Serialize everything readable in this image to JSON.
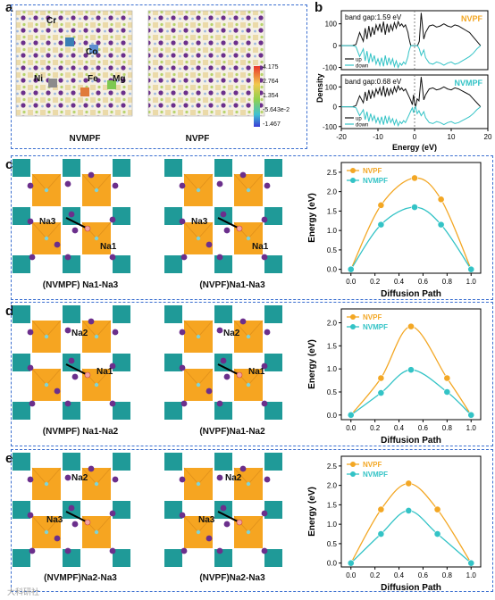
{
  "panel_letters": [
    "a",
    "b",
    "c",
    "d",
    "e"
  ],
  "panel_a": {
    "labels": [
      "NVMPF",
      "NVPF"
    ],
    "atom_labels": [
      "Cr",
      "Co",
      "Ni",
      "Fe",
      "Mg"
    ],
    "colorbar_ticks": [
      "4.175",
      "2.764",
      "1.354",
      "-5.643e-2",
      "-1.467"
    ]
  },
  "panel_c": {
    "labels": [
      "(NVMPF) Na1-Na3",
      "(NVPF)Na1-Na3"
    ],
    "site_labels": [
      "Na3",
      "Na1"
    ]
  },
  "panel_d": {
    "labels": [
      "(NVMPF) Na1-Na2",
      "(NVPF)Na1-Na2"
    ],
    "site_labels": [
      "Na2",
      "Na1"
    ]
  },
  "panel_e": {
    "labels": [
      "(NVMPF)Na2-Na3",
      "(NVPF)Na2-Na3"
    ],
    "site_labels": [
      "Na2",
      "Na3"
    ]
  },
  "colors": {
    "nvpf": "#f3a724",
    "nvmpf": "#33c3c6",
    "dash": "#3b6fd0",
    "octa": "#f6a521",
    "tile": "#1f9a98",
    "atom": "#6b2f8c"
  },
  "watermark": "大科研社",
  "chart_data": [
    {
      "id": "b_top",
      "type": "line",
      "title": "",
      "annotation": "band gap:1.59 eV",
      "compound": "NVPF",
      "xlabel": "",
      "ylabel": "Density of states",
      "xlim": [
        -20,
        20
      ],
      "ylim": [
        -110,
        160
      ],
      "yticks": [
        "100",
        "0",
        "-100"
      ],
      "series": [
        {
          "name": "up",
          "x": [
            -20,
            -17,
            -16,
            -15,
            -14,
            -13.5,
            -13,
            -12.5,
            -12,
            -11.5,
            -11,
            -10.5,
            -10,
            -9.5,
            -9,
            -8.5,
            -8,
            -7.5,
            -7,
            -6.5,
            -6,
            -5.5,
            -5,
            -4.5,
            -4,
            -3.5,
            -3,
            -2.5,
            -2,
            -1.8,
            -1.6,
            -1.2,
            -1,
            -0.6,
            -0.3,
            0,
            0.4,
            0.8,
            1.3,
            1.8,
            2.5,
            3,
            4,
            5,
            6,
            7,
            8,
            9,
            10,
            11,
            12,
            13,
            14,
            15,
            16,
            17,
            18
          ],
          "y": [
            0,
            0,
            5,
            60,
            20,
            80,
            30,
            90,
            40,
            85,
            50,
            95,
            70,
            100,
            60,
            110,
            50,
            100,
            60,
            95,
            70,
            105,
            80,
            110,
            90,
            100,
            85,
            95,
            70,
            60,
            40,
            10,
            0,
            0,
            0,
            0,
            0,
            0,
            20,
            150,
            30,
            60,
            90,
            95,
            85,
            90,
            100,
            90,
            85,
            95,
            90,
            80,
            70,
            60,
            40,
            20,
            0
          ]
        },
        {
          "name": "down",
          "x": [
            -20,
            -17,
            -16,
            -15,
            -14,
            -13.5,
            -13,
            -12.5,
            -12,
            -11.5,
            -11,
            -10.5,
            -10,
            -9.5,
            -9,
            -8.5,
            -8,
            -7.5,
            -7,
            -6.5,
            -6,
            -5.5,
            -5,
            -4.5,
            -4,
            -3.5,
            -3,
            -2.5,
            -2,
            -1.8,
            -1.6,
            -1.2,
            -1,
            -0.6,
            -0.3,
            0,
            0.4,
            0.8,
            1.3,
            1.8,
            2.5,
            3,
            4,
            5,
            6,
            7,
            8,
            9,
            10,
            11,
            12,
            13,
            14,
            15,
            16,
            17,
            18
          ],
          "y": [
            0,
            0,
            -5,
            -50,
            -15,
            -70,
            -25,
            -80,
            -35,
            -75,
            -45,
            -85,
            -60,
            -90,
            -55,
            -95,
            -45,
            -90,
            -55,
            -85,
            -60,
            -95,
            -70,
            -100,
            -80,
            -90,
            -75,
            -85,
            -60,
            -50,
            -30,
            -8,
            0,
            0,
            0,
            0,
            0,
            0,
            -15,
            -45,
            -20,
            -55,
            -80,
            -85,
            -75,
            -80,
            -90,
            -80,
            -75,
            -85,
            -80,
            -70,
            -60,
            -50,
            -35,
            -15,
            0
          ]
        }
      ]
    },
    {
      "id": "b_bottom",
      "type": "line",
      "title": "",
      "annotation": "band gap:0.68 eV",
      "compound": "NVMPF",
      "xlabel": "Energy (eV)",
      "ylabel": "Density of states",
      "xlim": [
        -20,
        20
      ],
      "ylim": [
        -110,
        160
      ],
      "xticks": [
        "-20",
        "-10",
        "0",
        "10",
        "20"
      ],
      "yticks": [
        "100",
        "0",
        "-100"
      ],
      "series": [
        {
          "name": "up",
          "x": [
            -20,
            -17,
            -16,
            -15,
            -14,
            -13.5,
            -13,
            -12.5,
            -12,
            -11.5,
            -11,
            -10.5,
            -10,
            -9.5,
            -9,
            -8.5,
            -8,
            -7.5,
            -7,
            -6.5,
            -6,
            -5.5,
            -5,
            -4.5,
            -4,
            -3.5,
            -3,
            -2.5,
            -2,
            -1.5,
            -1,
            -0.6,
            -0.3,
            0,
            0.3,
            0.7,
            1.2,
            1.8,
            2.5,
            3,
            4,
            5,
            6,
            7,
            8,
            9,
            10,
            11,
            12,
            13,
            14,
            15,
            16,
            17,
            18
          ],
          "y": [
            0,
            0,
            5,
            55,
            20,
            75,
            30,
            85,
            40,
            80,
            50,
            90,
            65,
            95,
            55,
            105,
            50,
            95,
            55,
            90,
            65,
            100,
            75,
            105,
            85,
            95,
            80,
            90,
            70,
            50,
            30,
            10,
            60,
            20,
            0,
            40,
            30,
            150,
            35,
            60,
            90,
            95,
            85,
            90,
            100,
            90,
            85,
            95,
            90,
            80,
            70,
            60,
            40,
            20,
            0
          ]
        },
        {
          "name": "down",
          "x": [
            -20,
            -17,
            -16,
            -15,
            -14,
            -13.5,
            -13,
            -12.5,
            -12,
            -11.5,
            -11,
            -10.5,
            -10,
            -9.5,
            -9,
            -8.5,
            -8,
            -7.5,
            -7,
            -6.5,
            -6,
            -5.5,
            -5,
            -4.5,
            -4,
            -3.5,
            -3,
            -2.5,
            -2,
            -1.5,
            -1,
            -0.6,
            -0.3,
            0,
            0.3,
            0.7,
            1.2,
            1.8,
            2.5,
            3,
            4,
            5,
            6,
            7,
            8,
            9,
            10,
            11,
            12,
            13,
            14,
            15,
            16,
            17,
            18
          ],
          "y": [
            0,
            0,
            -5,
            -45,
            -15,
            -65,
            -25,
            -75,
            -35,
            -70,
            -45,
            -80,
            -55,
            -85,
            -50,
            -90,
            -45,
            -85,
            -50,
            -80,
            -60,
            -90,
            -65,
            -95,
            -75,
            -85,
            -70,
            -80,
            -60,
            -40,
            -20,
            -5,
            -30,
            -10,
            0,
            -35,
            -20,
            -45,
            -25,
            -55,
            -80,
            -85,
            -75,
            -80,
            -90,
            -80,
            -75,
            -85,
            -80,
            -70,
            -60,
            -50,
            -35,
            -15,
            0
          ]
        }
      ]
    },
    {
      "id": "c_chart",
      "type": "line",
      "xlabel": "Diffusion Path",
      "ylabel": "Energy (eV)",
      "xlim": [
        -0.08,
        1.08
      ],
      "ylim": [
        -0.1,
        2.75
      ],
      "xticks": [
        "0.0",
        "0.2",
        "0.4",
        "0.6",
        "0.8",
        "1.0"
      ],
      "yticks": [
        "0.0",
        "0.5",
        "1.0",
        "1.5",
        "2.0",
        "2.5"
      ],
      "series": [
        {
          "name": "NVPF",
          "x": [
            0,
            0.25,
            0.53,
            0.75,
            1.0
          ],
          "y": [
            0,
            1.65,
            2.35,
            1.8,
            0
          ]
        },
        {
          "name": "NVMPF",
          "x": [
            0,
            0.25,
            0.53,
            0.75,
            1.0
          ],
          "y": [
            0,
            1.15,
            1.6,
            1.15,
            0
          ]
        }
      ]
    },
    {
      "id": "d_chart",
      "type": "line",
      "xlabel": "Diffusion Path",
      "ylabel": "Energy (eV)",
      "xlim": [
        -0.08,
        1.08
      ],
      "ylim": [
        -0.1,
        2.3
      ],
      "xticks": [
        "0.0",
        "0.2",
        "0.4",
        "0.6",
        "0.8",
        "1.0"
      ],
      "yticks": [
        "0.0",
        "0.5",
        "1.0",
        "1.5",
        "2.0"
      ],
      "series": [
        {
          "name": "NVPF",
          "x": [
            0,
            0.25,
            0.5,
            0.8,
            1.0
          ],
          "y": [
            0,
            0.8,
            1.92,
            0.8,
            0
          ]
        },
        {
          "name": "NVMPF",
          "x": [
            0,
            0.25,
            0.5,
            0.8,
            1.0
          ],
          "y": [
            0,
            0.48,
            0.98,
            0.5,
            0
          ]
        }
      ]
    },
    {
      "id": "e_chart",
      "type": "line",
      "xlabel": "Diffusion Path",
      "ylabel": "Energy (eV)",
      "xlim": [
        -0.08,
        1.08
      ],
      "ylim": [
        -0.1,
        2.75
      ],
      "xticks": [
        "0.0",
        "0.2",
        "0.4",
        "0.6",
        "0.8",
        "1.0"
      ],
      "yticks": [
        "0.0",
        "0.5",
        "1.0",
        "1.5",
        "2.0",
        "2.5"
      ],
      "series": [
        {
          "name": "NVPF",
          "x": [
            0,
            0.25,
            0.48,
            0.72,
            1.0
          ],
          "y": [
            0,
            1.38,
            2.05,
            1.38,
            0
          ]
        },
        {
          "name": "NVMPF",
          "x": [
            0,
            0.25,
            0.48,
            0.72,
            1.0
          ],
          "y": [
            0,
            0.75,
            1.35,
            0.75,
            0
          ]
        }
      ]
    }
  ]
}
